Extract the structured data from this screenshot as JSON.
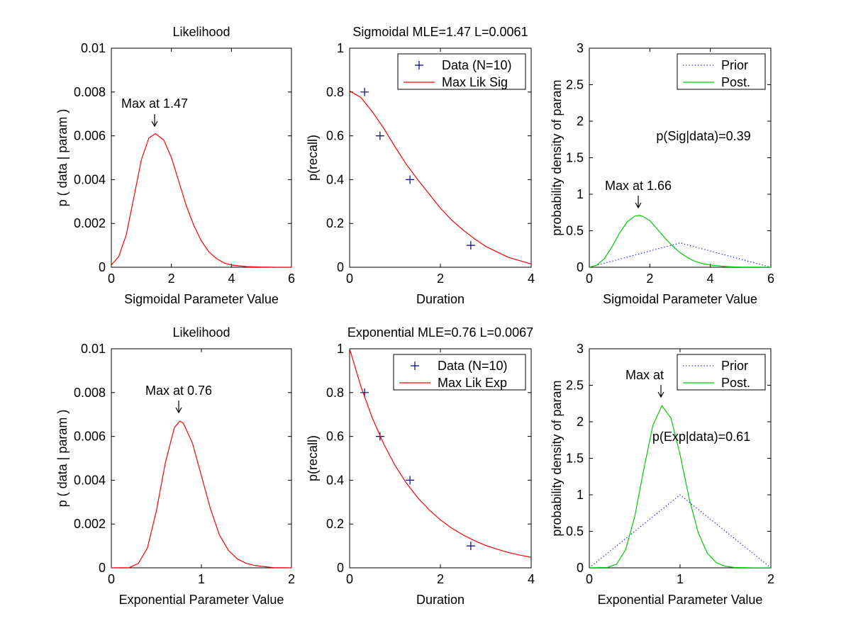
{
  "chart_data": [
    {
      "type": "line",
      "title": "Likelihood",
      "xlabel": "Sigmoidal Parameter Value",
      "ylabel": "p ( data | param )",
      "xlim": [
        0,
        6
      ],
      "ylim": [
        0,
        0.01
      ],
      "xticks": [
        "0",
        "2",
        "4",
        "6"
      ],
      "yticks": [
        "0",
        "0.002",
        "0.004",
        "0.006",
        "0.008",
        "0.01"
      ],
      "grid": false,
      "series": [
        {
          "color": "#ff0000",
          "style": "solid",
          "x": [
            0,
            0.25,
            0.5,
            0.75,
            1.0,
            1.25,
            1.47,
            1.75,
            2.0,
            2.25,
            2.5,
            2.75,
            3.0,
            3.25,
            3.5,
            3.75,
            4.0,
            4.5,
            5.0,
            5.5,
            6.0
          ],
          "y": [
            0.0001,
            0.0005,
            0.0015,
            0.0032,
            0.0049,
            0.0059,
            0.0061,
            0.0058,
            0.005,
            0.0039,
            0.0028,
            0.0019,
            0.0012,
            0.0007,
            0.0004,
            0.0002,
            0.0001,
            3e-05,
            1e-05,
            0,
            0
          ]
        }
      ],
      "annotations": [
        {
          "text": "Max at 1.47",
          "x": 1.47,
          "y": 0.0061
        }
      ]
    },
    {
      "type": "line",
      "title": "Sigmoidal MLE=1.47 L=0.0061",
      "xlabel": "Duration",
      "ylabel": "p(recall)",
      "xlim": [
        0,
        4
      ],
      "ylim": [
        0,
        1
      ],
      "xticks": [
        "0",
        "2",
        "4"
      ],
      "yticks": [
        "0",
        "0.2",
        "0.4",
        "0.6",
        "0.8",
        "1"
      ],
      "grid": false,
      "legend_position": "top-right",
      "series": [
        {
          "name": "Data (N=10)",
          "marker": "+",
          "color": "#00008b",
          "x": [
            0.33,
            0.67,
            1.33,
            2.67
          ],
          "y": [
            0.8,
            0.6,
            0.4,
            0.1
          ]
        },
        {
          "name": "Max Lik Sig",
          "color": "#ff0000",
          "style": "solid",
          "x": [
            0,
            0.25,
            0.5,
            0.75,
            1.0,
            1.25,
            1.5,
            1.75,
            2.0,
            2.25,
            2.5,
            2.75,
            3.0,
            3.25,
            3.5,
            3.75,
            4.0
          ],
          "y": [
            0.805,
            0.775,
            0.71,
            0.635,
            0.55,
            0.47,
            0.4,
            0.335,
            0.27,
            0.215,
            0.17,
            0.13,
            0.095,
            0.07,
            0.045,
            0.03,
            0.015
          ]
        }
      ]
    },
    {
      "type": "line",
      "xlabel": "Sigmoidal Parameter Value",
      "ylabel": "probability density of param",
      "xlim": [
        0,
        6
      ],
      "ylim": [
        0,
        3
      ],
      "xticks": [
        "0",
        "2",
        "4",
        "6"
      ],
      "yticks": [
        "0",
        "0.5",
        "1",
        "1.5",
        "2",
        "2.5",
        "3"
      ],
      "grid": false,
      "legend_position": "top-right",
      "series": [
        {
          "name": "Prior",
          "color": "#0000ff",
          "style": "dotted",
          "x": [
            0,
            3,
            6
          ],
          "y": [
            0,
            0.333,
            0
          ]
        },
        {
          "name": "Post.",
          "color": "#00cc00",
          "style": "solid",
          "x": [
            0,
            0.25,
            0.5,
            0.75,
            1.0,
            1.25,
            1.5,
            1.66,
            1.75,
            2.0,
            2.25,
            2.5,
            2.75,
            3.0,
            3.25,
            3.5,
            3.75,
            4.0,
            4.5,
            5.0,
            6.0
          ],
          "y": [
            0.0,
            0.03,
            0.12,
            0.28,
            0.47,
            0.62,
            0.7,
            0.71,
            0.7,
            0.64,
            0.52,
            0.4,
            0.29,
            0.2,
            0.13,
            0.08,
            0.05,
            0.03,
            0.01,
            0.003,
            0
          ]
        }
      ],
      "annotations": [
        {
          "text": "Max at 1.66",
          "x": 1.66,
          "y": 0.71
        },
        {
          "text": "p(Sig|data)=0.39"
        }
      ]
    },
    {
      "type": "line",
      "title": "Likelihood",
      "xlabel": "Exponential Parameter Value",
      "ylabel": "p ( data | param )",
      "xlim": [
        0,
        2
      ],
      "ylim": [
        0,
        0.01
      ],
      "xticks": [
        "0",
        "1",
        "2"
      ],
      "yticks": [
        "0",
        "0.002",
        "0.004",
        "0.006",
        "0.008",
        "0.01"
      ],
      "grid": false,
      "series": [
        {
          "color": "#ff0000",
          "style": "solid",
          "x": [
            0,
            0.2,
            0.3,
            0.4,
            0.5,
            0.6,
            0.7,
            0.76,
            0.8,
            0.9,
            1.0,
            1.1,
            1.2,
            1.3,
            1.4,
            1.5,
            1.6,
            1.8,
            2.0
          ],
          "y": [
            0,
            1e-05,
            0.0002,
            0.0009,
            0.0026,
            0.0048,
            0.0064,
            0.0067,
            0.0066,
            0.0057,
            0.0042,
            0.0027,
            0.0015,
            0.0008,
            0.0004,
            0.0002,
            0.0001,
            1e-05,
            0
          ]
        }
      ],
      "annotations": [
        {
          "text": "Max at 0.76",
          "x": 0.76,
          "y": 0.0067
        }
      ]
    },
    {
      "type": "line",
      "title": "Exponential MLE=0.76 L=0.0067",
      "xlabel": "Duration",
      "ylabel": "p(recall)",
      "xlim": [
        0,
        4
      ],
      "ylim": [
        0,
        1
      ],
      "xticks": [
        "0",
        "2",
        "4"
      ],
      "yticks": [
        "0",
        "0.2",
        "0.4",
        "0.6",
        "0.8",
        "1"
      ],
      "grid": false,
      "legend_position": "top-right",
      "series": [
        {
          "name": "Data (N=10)",
          "marker": "+",
          "color": "#00008b",
          "x": [
            0.33,
            0.67,
            1.33,
            2.67
          ],
          "y": [
            0.8,
            0.6,
            0.4,
            0.1
          ]
        },
        {
          "name": "Max Lik Exp",
          "color": "#ff0000",
          "style": "solid",
          "x": [
            0,
            0.25,
            0.5,
            0.75,
            1.0,
            1.25,
            1.5,
            1.75,
            2.0,
            2.25,
            2.5,
            2.75,
            3.0,
            3.25,
            3.5,
            3.75,
            4.0
          ],
          "y": [
            1.0,
            0.827,
            0.684,
            0.566,
            0.468,
            0.387,
            0.32,
            0.265,
            0.219,
            0.181,
            0.15,
            0.124,
            0.102,
            0.085,
            0.07,
            0.058,
            0.048
          ]
        }
      ]
    },
    {
      "type": "line",
      "xlabel": "Exponential Parameter Value",
      "ylabel": "probability density of param",
      "xlim": [
        0,
        2
      ],
      "ylim": [
        0,
        3
      ],
      "xticks": [
        "0",
        "1",
        "2"
      ],
      "yticks": [
        "0",
        "0.5",
        "1",
        "1.5",
        "2",
        "2.5",
        "3"
      ],
      "grid": false,
      "legend_position": "top-right",
      "series": [
        {
          "name": "Prior",
          "color": "#0000ff",
          "style": "dotted",
          "x": [
            0,
            1,
            2
          ],
          "y": [
            0,
            1,
            0
          ]
        },
        {
          "name": "Post.",
          "color": "#00cc00",
          "style": "solid",
          "x": [
            0,
            0.2,
            0.3,
            0.4,
            0.5,
            0.6,
            0.7,
            0.8,
            0.9,
            1.0,
            1.1,
            1.2,
            1.3,
            1.4,
            1.5,
            1.6,
            1.8,
            2.0
          ],
          "y": [
            0,
            0.005,
            0.05,
            0.25,
            0.7,
            1.35,
            1.95,
            2.22,
            2.05,
            1.55,
            0.95,
            0.48,
            0.2,
            0.07,
            0.02,
            0.005,
            0,
            0
          ]
        }
      ],
      "annotations": [
        {
          "text": "Max at",
          "x": 0.8,
          "y": 2.22
        },
        {
          "text": "p(Exp|data)=0.61"
        }
      ]
    }
  ]
}
